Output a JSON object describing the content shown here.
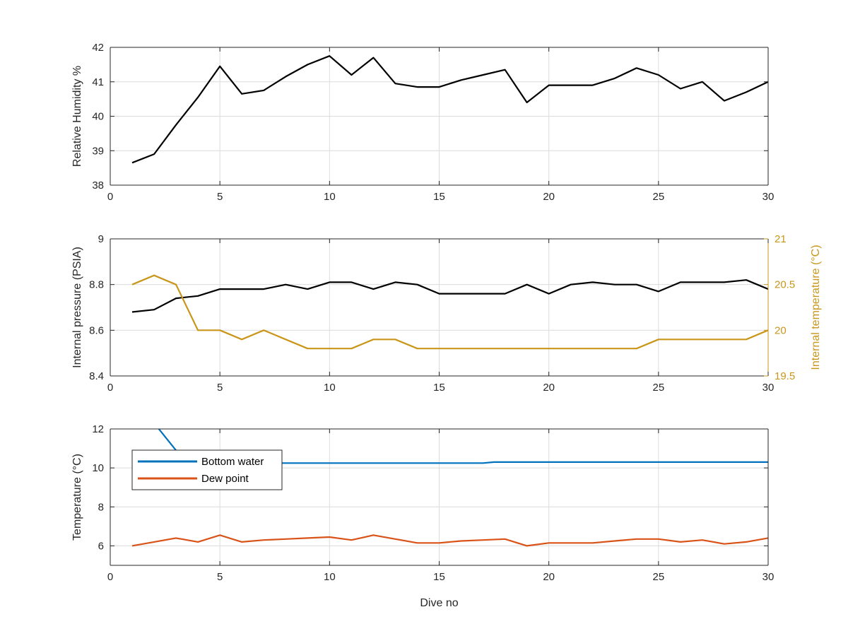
{
  "figure": {
    "colors": {
      "axis": "#262626",
      "grid": "#dcdcdc",
      "black_series": "#000000",
      "gold_series": "#C9961A",
      "blue_series": "#0072BD",
      "orange_series": "#D95319"
    }
  },
  "chart_data": [
    {
      "type": "line",
      "xlabel": "",
      "ylabel": "Relative Humidity %",
      "xlim": [
        0,
        30
      ],
      "ylim": [
        38,
        42
      ],
      "xticks": [
        0,
        5,
        10,
        15,
        20,
        25,
        30
      ],
      "yticks": [
        38,
        39,
        40,
        41,
        42
      ],
      "grid": true,
      "series": [
        {
          "color": "#000000",
          "x": [
            1,
            2,
            3,
            4,
            5,
            6,
            7,
            8,
            9,
            10,
            11,
            12,
            13,
            14,
            15,
            16,
            17,
            18,
            19,
            20,
            21,
            22,
            23,
            24,
            25,
            26,
            27,
            28,
            29,
            30
          ],
          "values": [
            38.65,
            38.9,
            39.75,
            40.55,
            41.45,
            40.65,
            40.75,
            41.15,
            41.5,
            41.75,
            41.2,
            41.7,
            40.95,
            40.85,
            40.85,
            41.05,
            41.2,
            41.35,
            40.4,
            40.9,
            40.9,
            40.9,
            41.1,
            41.4,
            41.2,
            40.8,
            41.0,
            40.45,
            40.7,
            41.0
          ]
        }
      ]
    },
    {
      "type": "line",
      "xlabel": "",
      "ylabel": "Internal pressure (PSIA)",
      "ylabel_right": "Internal temperature (°C)",
      "xlim": [
        0,
        30
      ],
      "ylim": [
        8.4,
        9.0
      ],
      "ylim_right": [
        19.5,
        21
      ],
      "xticks": [
        0,
        5,
        10,
        15,
        20,
        25,
        30
      ],
      "yticks": [
        "8.4",
        "8.6",
        "8.8",
        "9"
      ],
      "yticks_right": [
        "19.5",
        "20",
        "20.5",
        "21"
      ],
      "grid": true,
      "series": [
        {
          "axis": "left",
          "color": "#000000",
          "x": [
            1,
            2,
            3,
            4,
            5,
            6,
            7,
            8,
            9,
            10,
            11,
            12,
            13,
            14,
            15,
            16,
            17,
            18,
            19,
            20,
            21,
            22,
            23,
            24,
            25,
            26,
            27,
            28,
            29,
            30
          ],
          "values": [
            8.68,
            8.69,
            8.74,
            8.75,
            8.78,
            8.78,
            8.78,
            8.8,
            8.78,
            8.81,
            8.81,
            8.78,
            8.81,
            8.8,
            8.76,
            8.76,
            8.76,
            8.76,
            8.8,
            8.76,
            8.8,
            8.81,
            8.8,
            8.8,
            8.77,
            8.81,
            8.81,
            8.81,
            8.82,
            8.78
          ]
        },
        {
          "axis": "right",
          "color": "#C9961A",
          "x": [
            1,
            2,
            3,
            4,
            5,
            6,
            7,
            8,
            9,
            10,
            11,
            12,
            13,
            14,
            15,
            16,
            17,
            18,
            19,
            20,
            21,
            22,
            23,
            24,
            25,
            26,
            27,
            28,
            29,
            30
          ],
          "values": [
            20.5,
            20.6,
            20.5,
            20.0,
            20.0,
            19.9,
            20.0,
            19.9,
            19.8,
            19.8,
            19.8,
            19.9,
            19.9,
            19.8,
            19.8,
            19.8,
            19.8,
            19.8,
            19.8,
            19.8,
            19.8,
            19.8,
            19.8,
            19.8,
            19.9,
            19.9,
            19.9,
            19.9,
            19.9,
            20.0
          ]
        }
      ]
    },
    {
      "type": "line",
      "xlabel": "Dive no",
      "ylabel": "Temperature (°C)",
      "xlim": [
        0,
        30
      ],
      "ylim": [
        5,
        12
      ],
      "xticks": [
        0,
        5,
        10,
        15,
        20,
        25,
        30
      ],
      "yticks": [
        6,
        8,
        10,
        12
      ],
      "grid": true,
      "legend_position": "top-left",
      "series": [
        {
          "name": "Bottom water",
          "color": "#0072BD",
          "x": [
            1,
            2,
            3,
            4,
            5,
            6,
            7,
            8,
            9,
            10,
            11,
            12,
            13,
            14,
            15,
            16,
            17,
            17.5,
            18,
            19,
            20,
            21,
            22,
            23,
            24,
            25,
            26,
            27,
            28,
            29,
            30
          ],
          "values": [
            14.4,
            12.3,
            10.9,
            10.25,
            10.25,
            10.25,
            10.25,
            10.25,
            10.25,
            10.25,
            10.25,
            10.25,
            10.25,
            10.25,
            10.25,
            10.25,
            10.25,
            10.3,
            10.3,
            10.3,
            10.3,
            10.3,
            10.3,
            10.3,
            10.3,
            10.3,
            10.3,
            10.3,
            10.3,
            10.3,
            10.3
          ]
        },
        {
          "name": "Dew point",
          "color": "#D95319",
          "x": [
            1,
            2,
            3,
            4,
            5,
            6,
            7,
            8,
            9,
            10,
            11,
            12,
            13,
            14,
            15,
            16,
            17,
            18,
            19,
            20,
            21,
            22,
            23,
            24,
            25,
            26,
            27,
            28,
            29,
            30
          ],
          "values": [
            6.0,
            6.2,
            6.4,
            6.2,
            6.55,
            6.2,
            6.3,
            6.35,
            6.4,
            6.45,
            6.3,
            6.55,
            6.35,
            6.15,
            6.15,
            6.25,
            6.3,
            6.35,
            6.0,
            6.15,
            6.15,
            6.15,
            6.25,
            6.35,
            6.35,
            6.2,
            6.3,
            6.1,
            6.2,
            6.4
          ]
        }
      ]
    }
  ]
}
